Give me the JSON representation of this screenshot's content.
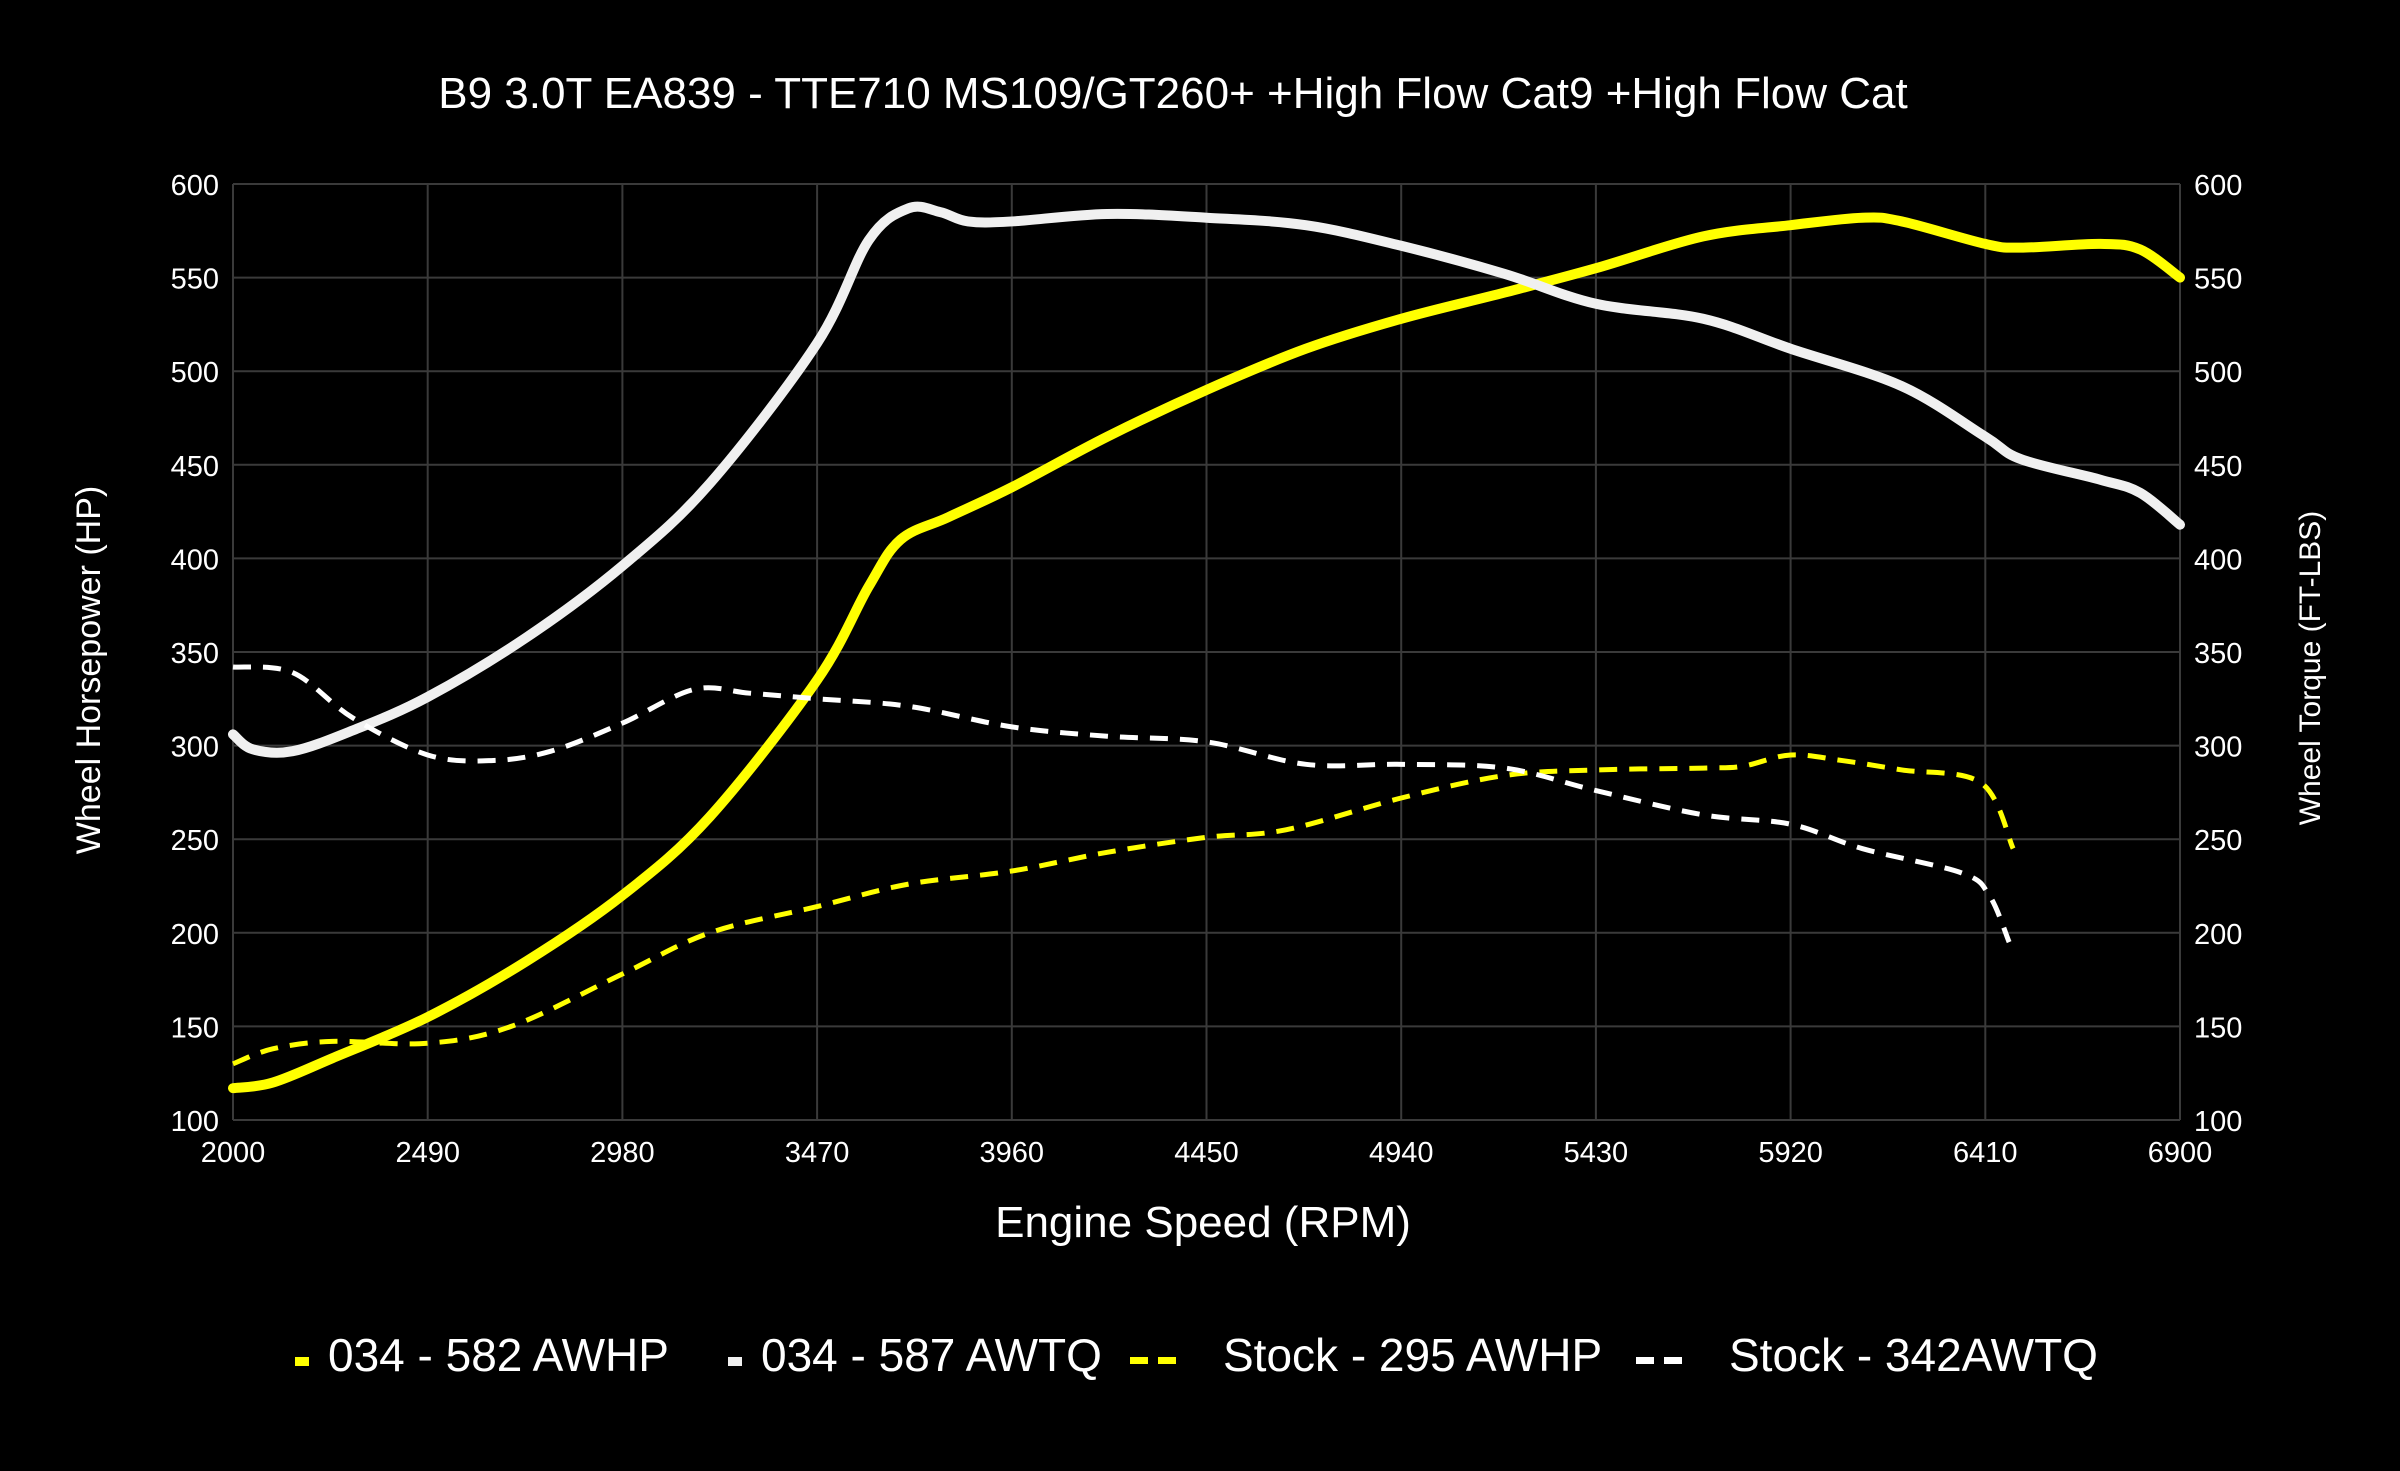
{
  "chart_data": {
    "type": "line",
    "title": "B9 3.0T EA839 - TTE710 MS109/GT260+ +High Flow Cat9 +High Flow Cat",
    "xlabel": "Engine Speed (RPM)",
    "ylabel": "Wheel Horsepower (HP)",
    "y2label": "Wheel Torque (FT-LBS)",
    "xlim": [
      2000,
      6900
    ],
    "ylim": [
      100,
      600
    ],
    "y2lim": [
      100,
      600
    ],
    "x_ticks": [
      2000,
      2490,
      2980,
      3470,
      3960,
      4450,
      4940,
      5430,
      5920,
      6410,
      6900
    ],
    "y_ticks": [
      100,
      150,
      200,
      250,
      300,
      350,
      400,
      450,
      500,
      550,
      600
    ],
    "grid": true,
    "legend_position": "bottom",
    "series": [
      {
        "name": "034 - 582 AWHP",
        "color": "#ffff00",
        "style": "solid",
        "axis": "left",
        "x": [
          2000,
          2100,
          2250,
          2490,
          2740,
          2980,
          3200,
          3470,
          3600,
          3680,
          3800,
          3960,
          4200,
          4450,
          4700,
          4940,
          5200,
          5430,
          5700,
          5920,
          6100,
          6200,
          6410,
          6500,
          6700,
          6800,
          6900
        ],
        "y": [
          117,
          120,
          133,
          155,
          185,
          220,
          262,
          335,
          385,
          410,
          422,
          438,
          465,
          490,
          512,
          528,
          542,
          555,
          572,
          578,
          582,
          580,
          568,
          566,
          568,
          565,
          550
        ]
      },
      {
        "name": "034 - 587 AWTQ",
        "color": "#f0f0f0",
        "style": "solid",
        "axis": "right",
        "x": [
          2000,
          2050,
          2150,
          2300,
          2490,
          2740,
          2980,
          3200,
          3470,
          3600,
          3700,
          3780,
          3850,
          3960,
          4200,
          4450,
          4700,
          4940,
          5200,
          5430,
          5700,
          5920,
          6200,
          6410,
          6500,
          6700,
          6800,
          6900
        ],
        "y": [
          306,
          298,
          297,
          308,
          326,
          358,
          396,
          440,
          515,
          570,
          587,
          585,
          580,
          580,
          584,
          582,
          578,
          567,
          552,
          536,
          528,
          512,
          492,
          465,
          453,
          442,
          435,
          418
        ]
      },
      {
        "name": "Stock - 295 AWHP",
        "color": "#ffff00",
        "style": "dashed",
        "axis": "left",
        "x": [
          2000,
          2100,
          2250,
          2490,
          2700,
          2980,
          3200,
          3470,
          3700,
          3960,
          4200,
          4450,
          4650,
          4940,
          5200,
          5430,
          5700,
          5800,
          5920,
          6050,
          6200,
          6400,
          6480
        ],
        "y": [
          130,
          138,
          142,
          141,
          150,
          178,
          200,
          214,
          226,
          233,
          243,
          251,
          255,
          272,
          284,
          287,
          288,
          289,
          295,
          292,
          287,
          280,
          245
        ]
      },
      {
        "name": "Stock - 342AWTQ",
        "color": "#ffffff",
        "style": "dashed",
        "axis": "right",
        "x": [
          2000,
          2150,
          2300,
          2490,
          2650,
          2800,
          2980,
          3160,
          3300,
          3470,
          3700,
          3960,
          4200,
          4450,
          4700,
          4940,
          5200,
          5430,
          5700,
          5920,
          6100,
          6350,
          6420,
          6470
        ],
        "y": [
          342,
          339,
          315,
          295,
          292,
          297,
          312,
          330,
          328,
          325,
          321,
          310,
          305,
          302,
          290,
          290,
          288,
          276,
          263,
          258,
          245,
          232,
          220,
          195
        ]
      }
    ]
  }
}
